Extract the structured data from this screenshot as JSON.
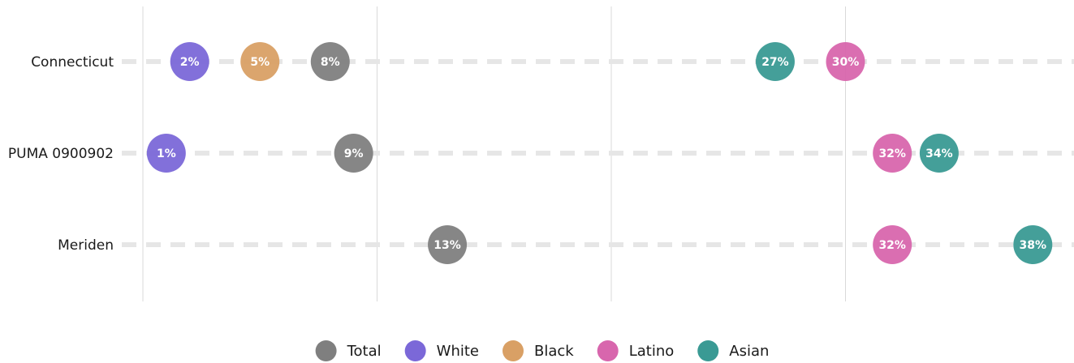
{
  "chart_data": {
    "type": "scatter",
    "categories": [
      "Connecticut",
      "PUMA 0900902",
      "Meriden"
    ],
    "series": [
      {
        "name": "Total",
        "color": "#7f7f7f",
        "values": [
          8,
          9,
          13
        ],
        "labels": [
          "8%",
          "9%",
          "13%"
        ]
      },
      {
        "name": "White",
        "color": "#7b68d8",
        "values": [
          2,
          1,
          null
        ],
        "labels": [
          "2%",
          "1%",
          ""
        ]
      },
      {
        "name": "Black",
        "color": "#d9a065",
        "values": [
          5,
          null,
          null
        ],
        "labels": [
          "5%",
          "",
          ""
        ]
      },
      {
        "name": "Latino",
        "color": "#d866ad",
        "values": [
          30,
          32,
          32
        ],
        "labels": [
          "30%",
          "32%",
          "32%"
        ]
      },
      {
        "name": "Asian",
        "color": "#3a9a94",
        "values": [
          27,
          34,
          38
        ],
        "labels": [
          "27%",
          "34%",
          "38%"
        ]
      }
    ],
    "xlim": [
      0,
      40
    ],
    "grid": true,
    "legend": "bottom",
    "title": "",
    "xlabel": "",
    "ylabel": ""
  }
}
